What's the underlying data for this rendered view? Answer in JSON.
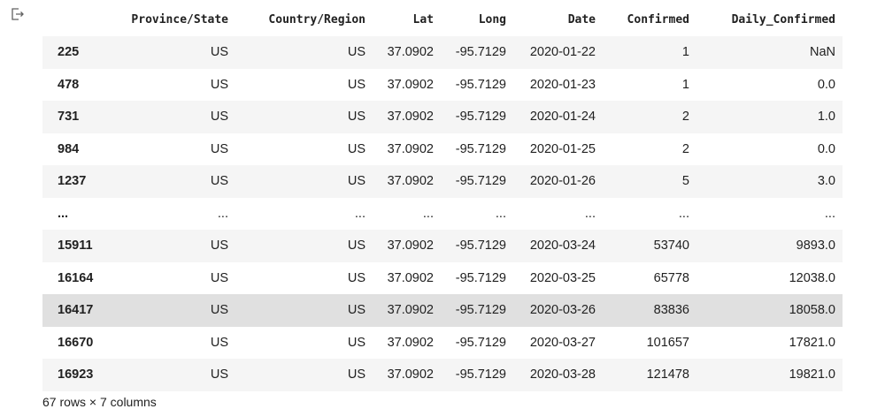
{
  "columns": [
    "",
    "Province/State",
    "Country/Region",
    "Lat",
    "Long",
    "Date",
    "Confirmed",
    "Daily_Confirmed"
  ],
  "rows": [
    [
      "225",
      "US",
      "US",
      "37.0902",
      "-95.7129",
      "2020-01-22",
      "1",
      "NaN"
    ],
    [
      "478",
      "US",
      "US",
      "37.0902",
      "-95.7129",
      "2020-01-23",
      "1",
      "0.0"
    ],
    [
      "731",
      "US",
      "US",
      "37.0902",
      "-95.7129",
      "2020-01-24",
      "2",
      "1.0"
    ],
    [
      "984",
      "US",
      "US",
      "37.0902",
      "-95.7129",
      "2020-01-25",
      "2",
      "0.0"
    ],
    [
      "1237",
      "US",
      "US",
      "37.0902",
      "-95.7129",
      "2020-01-26",
      "5",
      "3.0"
    ],
    [
      "...",
      "...",
      "...",
      "...",
      "...",
      "...",
      "...",
      "..."
    ],
    [
      "15911",
      "US",
      "US",
      "37.0902",
      "-95.7129",
      "2020-03-24",
      "53740",
      "9893.0"
    ],
    [
      "16164",
      "US",
      "US",
      "37.0902",
      "-95.7129",
      "2020-03-25",
      "65778",
      "12038.0"
    ],
    [
      "16417",
      "US",
      "US",
      "37.0902",
      "-95.7129",
      "2020-03-26",
      "83836",
      "18058.0"
    ],
    [
      "16670",
      "US",
      "US",
      "37.0902",
      "-95.7129",
      "2020-03-27",
      "101657",
      "17821.0"
    ],
    [
      "16923",
      "US",
      "US",
      "37.0902",
      "-95.7129",
      "2020-03-28",
      "121478",
      "19821.0"
    ]
  ],
  "highlighted_row": 8,
  "footer": "67 rows × 7 columns",
  "output_icon": "output-arrow-icon"
}
